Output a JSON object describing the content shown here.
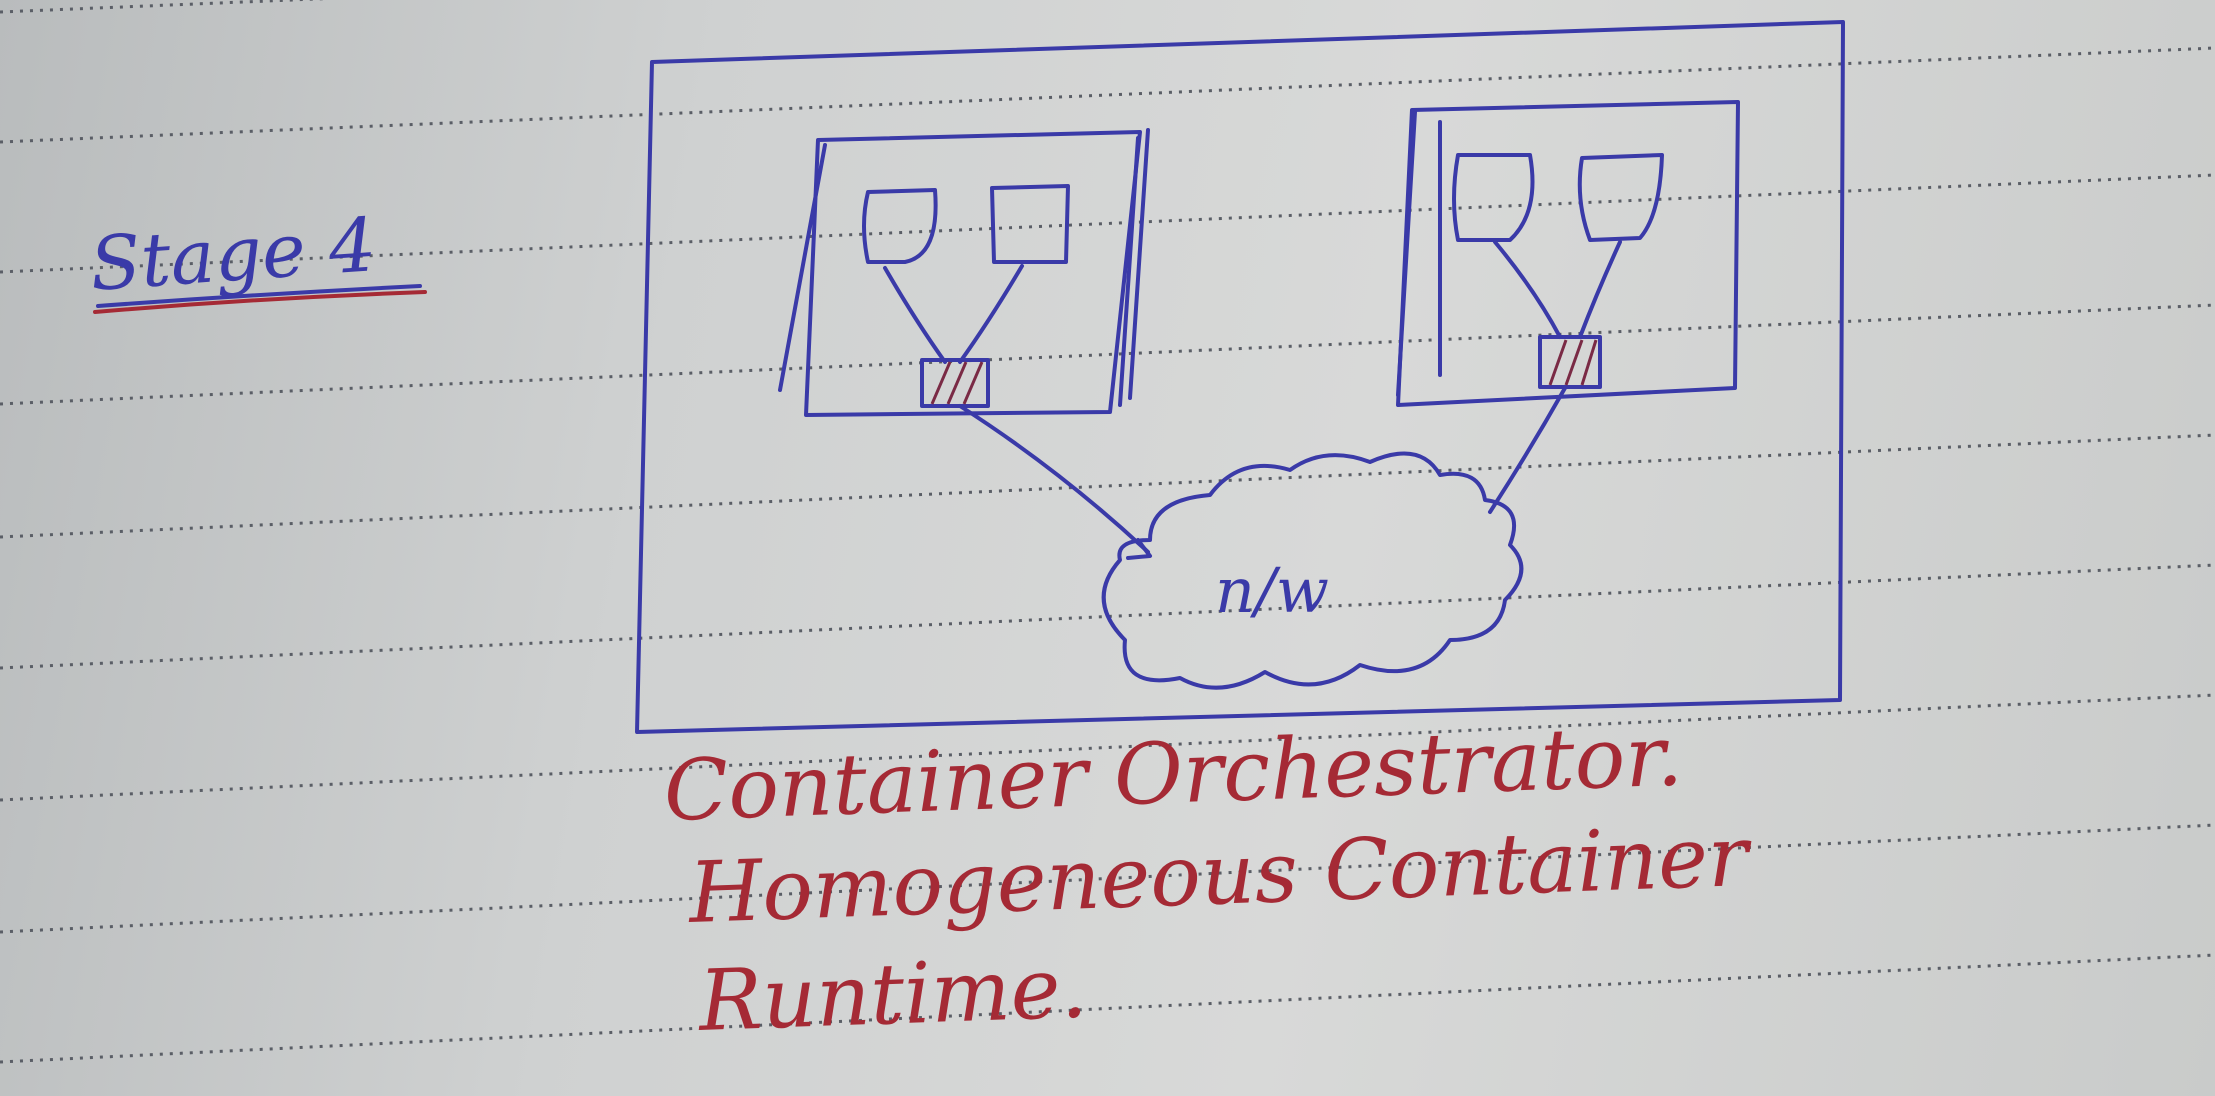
{
  "page": {
    "heading": "Stage 4",
    "caption_lines": [
      "Container Orchestrator.",
      "Homogeneous Container",
      "Runtime."
    ]
  },
  "diagram": {
    "network_label": "n/w",
    "hosts": [
      {
        "containers": 2,
        "shared_component": "hatched box"
      },
      {
        "containers": 2,
        "shared_component": "hatched box"
      }
    ]
  },
  "colors": {
    "paper": "#d3d5d4",
    "blue_ink": "#3a3aa8",
    "red_ink": "#a52a35",
    "ruled_line": "#5a5e66"
  }
}
